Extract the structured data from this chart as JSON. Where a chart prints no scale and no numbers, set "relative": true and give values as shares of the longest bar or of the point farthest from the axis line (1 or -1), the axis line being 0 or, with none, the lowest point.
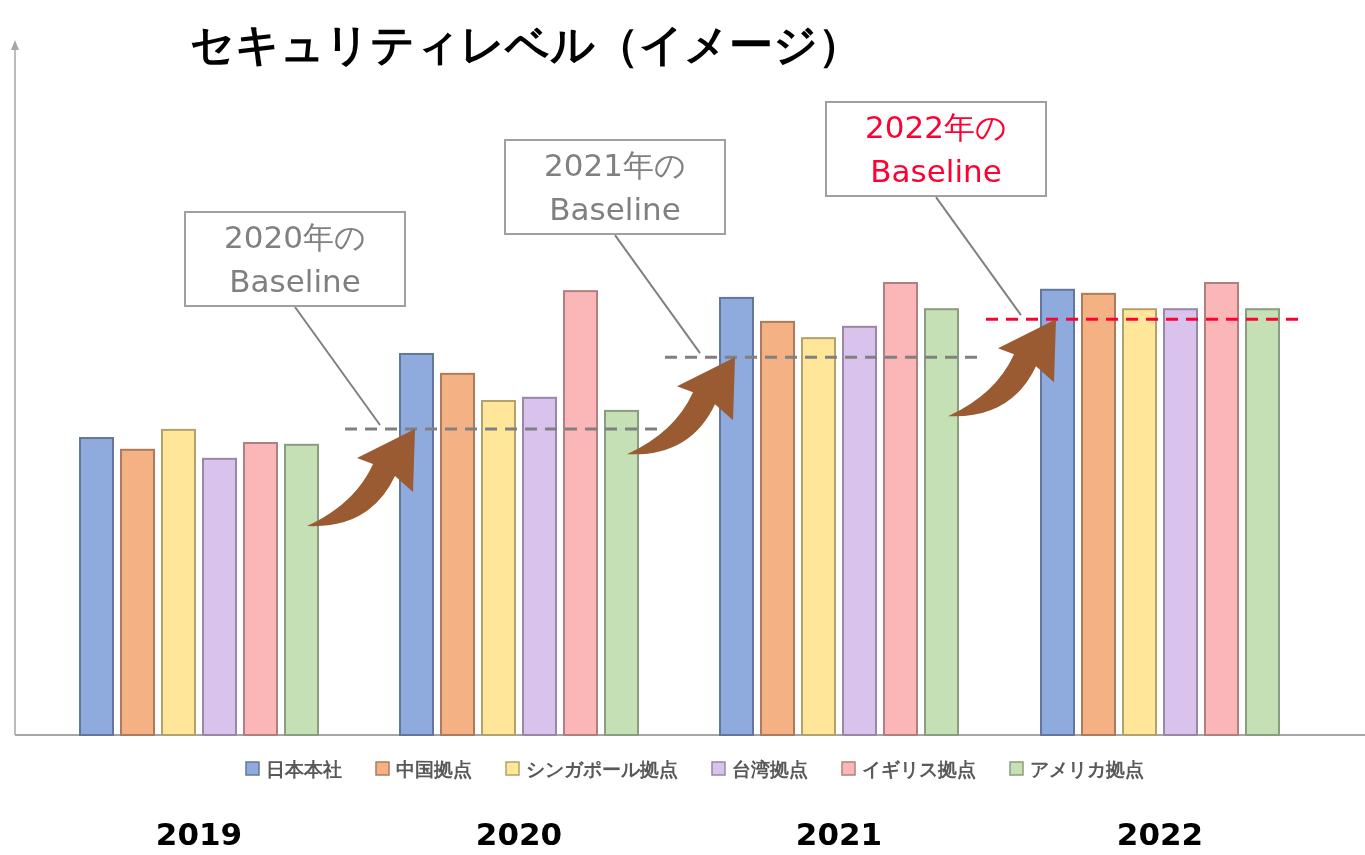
{
  "chart_data": {
    "type": "bar",
    "title": "セキュリティレベル（イメージ）",
    "relative": true,
    "legend": "bottom",
    "categories": [
      "2019",
      "2020",
      "2021",
      "2022"
    ],
    "series": [
      {
        "name": "日本本社",
        "color": "#8faadc",
        "values": [
          0.657,
          0.843,
          0.967,
          0.985
        ]
      },
      {
        "name": "中国拠点",
        "color": "#f4b183",
        "values": [
          0.631,
          0.799,
          0.914,
          0.976
        ]
      },
      {
        "name": "シンガポール拠点",
        "color": "#ffe699",
        "values": [
          0.675,
          0.739,
          0.878,
          0.942
        ]
      },
      {
        "name": "台湾拠点",
        "color": "#d9c2ec",
        "values": [
          0.611,
          0.746,
          0.903,
          0.942
        ]
      },
      {
        "name": "イギリス拠点",
        "color": "#fbb7b7",
        "values": [
          0.646,
          0.982,
          1,
          1
        ]
      },
      {
        "name": "アメリカ拠点",
        "color": "#c5e0b4",
        "values": [
          0.642,
          0.717,
          0.942,
          0.942
        ]
      }
    ],
    "ref_lines": [
      {
        "axis": "y",
        "value": 0.677,
        "label": "2020年のBaseline",
        "color": "#808080",
        "line_style": "dashed"
      },
      {
        "axis": "y",
        "value": 0.836,
        "label": "2021年のBaseline",
        "color": "#808080",
        "line_style": "dashed"
      },
      {
        "axis": "y",
        "value": 0.92,
        "label": "2022年のBaseline",
        "color": "#ff0033",
        "line_style": "dashed"
      }
    ]
  }
}
